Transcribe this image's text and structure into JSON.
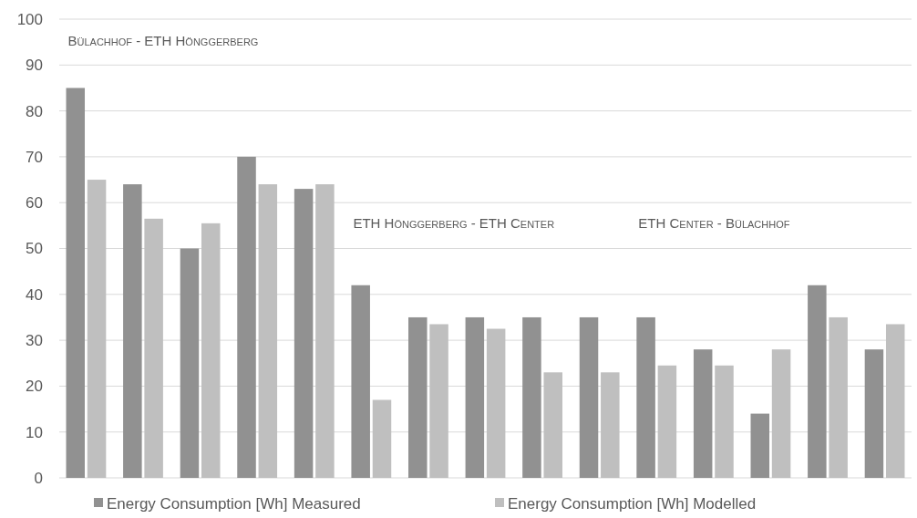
{
  "chart_data": {
    "type": "bar",
    "categories": [
      null,
      null,
      null,
      null,
      null,
      null,
      null,
      null,
      null,
      null,
      null,
      null,
      null,
      null,
      null
    ],
    "series": [
      {
        "name": "Energy Consumption [Wh] Measured",
        "color": "#919191",
        "values": [
          85,
          64,
          50,
          70,
          63,
          42,
          35,
          35,
          35,
          35,
          35,
          28,
          14,
          42,
          28
        ]
      },
      {
        "name": "Energy Consumption [Wh] Modelled",
        "color": "#bfbfbf",
        "values": [
          65,
          56.5,
          55.5,
          64,
          64,
          17,
          33.5,
          32.5,
          23,
          23,
          24.5,
          24.5,
          28,
          35,
          33.5
        ]
      }
    ],
    "ylim": [
      0,
      100
    ],
    "yticks": [
      0,
      10,
      20,
      30,
      40,
      50,
      60,
      70,
      80,
      90,
      100
    ],
    "grid": "y",
    "legend": "bottom",
    "annotations": [
      "Bülachhof - ETH Hönggerberg",
      "ETH Hönggerberg - ETH Center",
      "ETH Center - Bülachhof"
    ]
  }
}
